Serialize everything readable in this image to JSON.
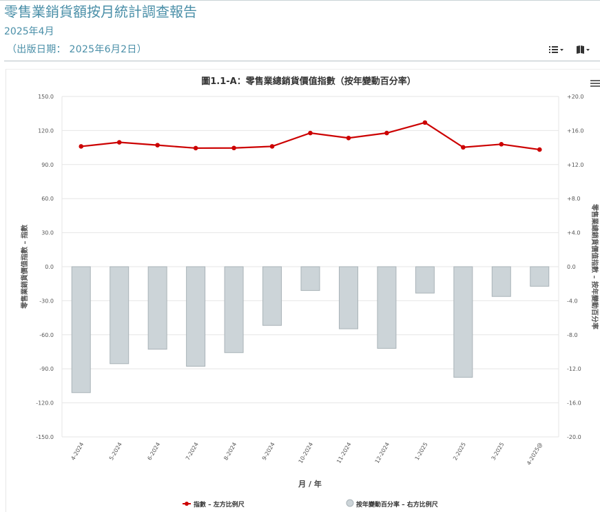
{
  "header": {
    "title": "零售業銷貨額按月統計調查報告",
    "subtitle": "2025年4月",
    "pub_date": "（出版日期： 2025年6月2日）"
  },
  "toolbar": {
    "list_icon": "list-dropdown-icon",
    "book_icon": "book-dropdown-icon"
  },
  "chart_menu_icon": "hamburger-menu-icon",
  "colors": {
    "header_text": "#4a8fa8",
    "index_line": "#cc0000",
    "bars_fill": "#ccd4d8",
    "bars_stroke": "#a9b3b8"
  },
  "chart_data": {
    "type": "bar+line",
    "title": "圖1.1-A：零售業總銷貨價值指數（按年變動百分率）",
    "xlabel": "月 / 年",
    "ylabel_left": "零售業銷貨價值指數 – 指數",
    "ylabel_right": "零售業總銷貨價值指數 – 按年變動百分率",
    "categories": [
      "4-2024",
      "5-2024",
      "6-2024",
      "7-2024",
      "8-2024",
      "9-2024",
      "10-2024",
      "11-2024",
      "12-2024",
      "1-2025",
      "2-2025",
      "3-2025",
      "4-2025@"
    ],
    "left_axis": {
      "ylim": [
        -150,
        150
      ],
      "ticks": [
        "-150.0",
        "-120.0",
        "-90.0",
        "-60.0",
        "-30.0",
        "0.0",
        "30.0",
        "60.0",
        "90.0",
        "120.0",
        "150.0"
      ]
    },
    "right_axis": {
      "ylim": [
        -20,
        20
      ],
      "ticks": [
        "-20.0",
        "-16.0",
        "-12.0",
        "-8.0",
        "-4.0",
        "0.0",
        "+4.0",
        "+8.0",
        "+12.0",
        "+16.0",
        "+20.0"
      ]
    },
    "series": [
      {
        "name": "指數 – 左方比例尺",
        "type": "line",
        "axis": "left",
        "values": [
          106.0,
          109.6,
          107.1,
          104.5,
          104.6,
          106.0,
          117.8,
          113.4,
          117.8,
          127.0,
          105.2,
          107.9,
          103.2
        ]
      },
      {
        "name": "按年變動百分率 – 右方比例尺",
        "type": "bar",
        "axis": "right",
        "values": [
          -14.8,
          -11.4,
          -9.7,
          -11.7,
          -10.1,
          -6.9,
          -2.8,
          -7.3,
          -9.6,
          -3.1,
          -13.0,
          -3.5,
          -2.3
        ]
      }
    ],
    "legend_position": "bottom",
    "grid": true
  }
}
